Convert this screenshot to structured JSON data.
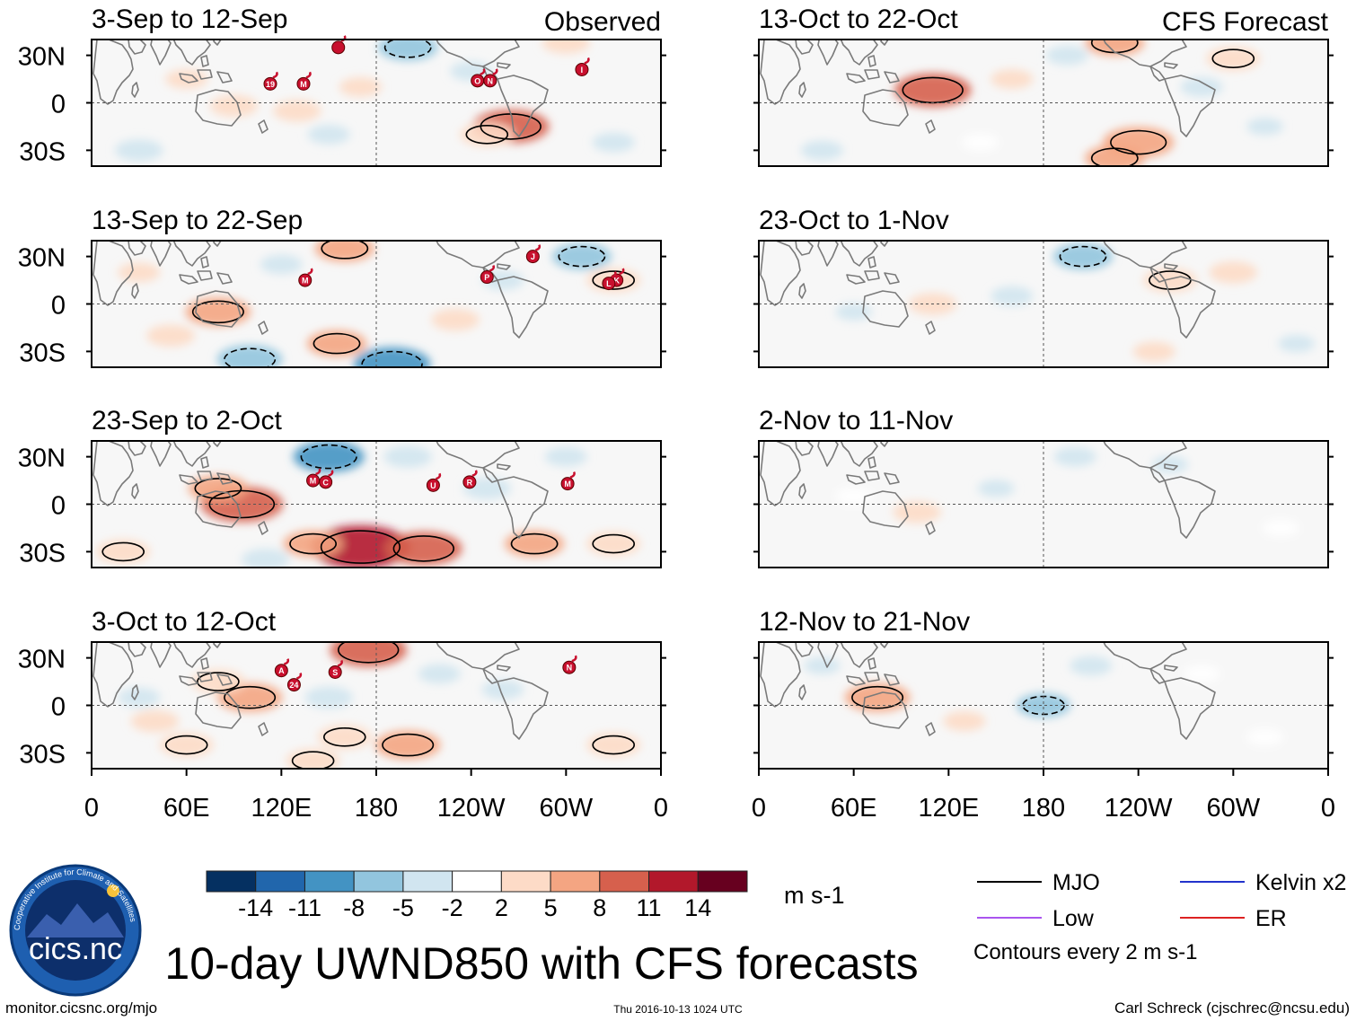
{
  "figure": {
    "title": "10-day UWND850 with CFS forecasts",
    "website": "monitor.cicsnc.org/mjo",
    "timestamp": "Thu 2016-10-13 1024 UTC",
    "author": "Carl Schreck (cjschrec@ncsu.edu)",
    "logo_label": "cics.nc",
    "logo_ring_text": "Cooperative Institute for Climate and Satellites"
  },
  "chart_data": {
    "type": "heatmap",
    "variable": "850-hPa zonal wind anomaly",
    "units": "m s-1",
    "column_headers": {
      "observed": "Observed",
      "forecast": "CFS Forecast"
    },
    "lat_ticks": [
      "30N",
      "0",
      "30S"
    ],
    "lat_values": [
      30,
      0,
      -30
    ],
    "lat_range": [
      -40,
      40
    ],
    "lon_ticks": [
      "0",
      "60E",
      "120E",
      "180",
      "120W",
      "60W",
      "0"
    ],
    "lon_values": [
      0,
      60,
      120,
      180,
      240,
      300,
      360
    ],
    "lon_range": [
      0,
      360
    ],
    "colorbar": {
      "labels": [
        "-14",
        "-11",
        "-8",
        "-5",
        "-2",
        "2",
        "5",
        "8",
        "11",
        "14"
      ],
      "colors": [
        "#053061",
        "#2166ac",
        "#4393c3",
        "#92c5de",
        "#d1e5f0",
        "#ffffff",
        "#fddbc7",
        "#f4a582",
        "#d6604d",
        "#b2182b",
        "#67001f"
      ]
    },
    "legend": [
      {
        "label": "MJO",
        "color": "#000000"
      },
      {
        "label": "Kelvin x2",
        "color": "#2233cc"
      },
      {
        "label": "Low",
        "color": "#aa55ee"
      },
      {
        "label": "ER",
        "color": "#dd2222"
      }
    ],
    "contour_note": "Contours every 2 m s-1",
    "panels": [
      {
        "title": "3-Sep to 12-Sep",
        "column": "observed",
        "storms": [
          {
            "letter": "",
            "lon": 156,
            "lat": 35
          },
          {
            "letter": "19",
            "lon": 113,
            "lat": 12
          },
          {
            "letter": "M",
            "lon": 134,
            "lat": 12
          },
          {
            "letter": "O",
            "lon": 244,
            "lat": 14
          },
          {
            "letter": "N",
            "lon": 252,
            "lat": 14
          },
          {
            "letter": "I",
            "lon": 310,
            "lat": 21
          }
        ],
        "anomalies": [
          {
            "lon": 90,
            "lat": -2,
            "v": 4
          },
          {
            "lon": 130,
            "lat": -5,
            "v": 4
          },
          {
            "lon": 170,
            "lat": 10,
            "v": 3
          },
          {
            "lon": 265,
            "lat": -15,
            "v": 9
          },
          {
            "lon": 250,
            "lat": -20,
            "v": 5
          },
          {
            "lon": 200,
            "lat": 35,
            "v": -6
          },
          {
            "lon": 240,
            "lat": 20,
            "v": -3
          },
          {
            "lon": 30,
            "lat": -30,
            "v": -4
          },
          {
            "lon": 150,
            "lat": -20,
            "v": -3
          },
          {
            "lon": 330,
            "lat": -25,
            "v": -3
          },
          {
            "lon": 60,
            "lat": 15,
            "v": 3
          },
          {
            "lon": 300,
            "lat": 38,
            "v": 4
          }
        ]
      },
      {
        "title": "13-Oct to 22-Oct",
        "column": "forecast",
        "storms": [],
        "anomalies": [
          {
            "lon": 110,
            "lat": 8,
            "v": 9
          },
          {
            "lon": 240,
            "lat": -25,
            "v": 8
          },
          {
            "lon": 225,
            "lat": -35,
            "v": 6
          },
          {
            "lon": 300,
            "lat": 28,
            "v": 5
          },
          {
            "lon": 225,
            "lat": 38,
            "v": 6
          },
          {
            "lon": 160,
            "lat": 15,
            "v": 3
          },
          {
            "lon": 280,
            "lat": 10,
            "v": -3
          },
          {
            "lon": 195,
            "lat": 30,
            "v": -3
          },
          {
            "lon": 40,
            "lat": -30,
            "v": -3
          },
          {
            "lon": 320,
            "lat": -15,
            "v": -2
          },
          {
            "lon": 140,
            "lat": -25,
            "v": 2
          }
        ]
      },
      {
        "title": "13-Sep to 22-Sep",
        "column": "observed",
        "storms": [
          {
            "letter": "J",
            "lon": 279,
            "lat": 30
          },
          {
            "letter": "M",
            "lon": 135,
            "lat": 15
          },
          {
            "letter": "P",
            "lon": 250,
            "lat": 17
          },
          {
            "letter": "K",
            "lon": 332,
            "lat": 15
          },
          {
            "letter": "L",
            "lon": 327,
            "lat": 13
          }
        ],
        "anomalies": [
          {
            "lon": 80,
            "lat": -5,
            "v": 7
          },
          {
            "lon": 50,
            "lat": -20,
            "v": 4
          },
          {
            "lon": 155,
            "lat": -25,
            "v": 6
          },
          {
            "lon": 160,
            "lat": 35,
            "v": 6
          },
          {
            "lon": 230,
            "lat": -10,
            "v": 4
          },
          {
            "lon": 330,
            "lat": 15,
            "v": 5
          },
          {
            "lon": 100,
            "lat": -35,
            "v": -7
          },
          {
            "lon": 190,
            "lat": -38,
            "v": -9
          },
          {
            "lon": 120,
            "lat": 25,
            "v": -3
          },
          {
            "lon": 310,
            "lat": 30,
            "v": -6
          },
          {
            "lon": 260,
            "lat": 15,
            "v": -3
          },
          {
            "lon": 30,
            "lat": 20,
            "v": 3
          }
        ]
      },
      {
        "title": "23-Oct to 1-Nov",
        "column": "forecast",
        "storms": [],
        "anomalies": [
          {
            "lon": 260,
            "lat": 15,
            "v": 5
          },
          {
            "lon": 300,
            "lat": 20,
            "v": 4
          },
          {
            "lon": 110,
            "lat": 0,
            "v": 4
          },
          {
            "lon": 205,
            "lat": 30,
            "v": -6
          },
          {
            "lon": 160,
            "lat": 5,
            "v": -3
          },
          {
            "lon": 60,
            "lat": -5,
            "v": -2
          },
          {
            "lon": 250,
            "lat": -30,
            "v": 3
          },
          {
            "lon": 340,
            "lat": -25,
            "v": -2
          }
        ]
      },
      {
        "title": "23-Sep to 2-Oct",
        "column": "observed",
        "storms": [
          {
            "letter": "M",
            "lon": 140,
            "lat": 15
          },
          {
            "letter": "C",
            "lon": 148,
            "lat": 14
          },
          {
            "letter": "U",
            "lon": 216,
            "lat": 12
          },
          {
            "letter": "R",
            "lon": 239,
            "lat": 14
          },
          {
            "letter": "M",
            "lon": 301,
            "lat": 13
          }
        ],
        "anomalies": [
          {
            "lon": 95,
            "lat": 0,
            "v": 10
          },
          {
            "lon": 80,
            "lat": 10,
            "v": 6
          },
          {
            "lon": 170,
            "lat": -27,
            "v": 13
          },
          {
            "lon": 210,
            "lat": -28,
            "v": 9
          },
          {
            "lon": 140,
            "lat": -25,
            "v": 6
          },
          {
            "lon": 280,
            "lat": -25,
            "v": 6
          },
          {
            "lon": 330,
            "lat": -25,
            "v": 5
          },
          {
            "lon": 20,
            "lat": -30,
            "v": 5
          },
          {
            "lon": 150,
            "lat": 30,
            "v": -8
          },
          {
            "lon": 200,
            "lat": 30,
            "v": -4
          },
          {
            "lon": 250,
            "lat": 10,
            "v": -4
          },
          {
            "lon": 110,
            "lat": -35,
            "v": -4
          },
          {
            "lon": 300,
            "lat": 30,
            "v": -3
          }
        ]
      },
      {
        "title": "2-Nov to 11-Nov",
        "column": "forecast",
        "storms": [],
        "anomalies": [
          {
            "lon": 100,
            "lat": -5,
            "v": 4
          },
          {
            "lon": 200,
            "lat": 30,
            "v": -3
          },
          {
            "lon": 150,
            "lat": 10,
            "v": -2
          },
          {
            "lon": 260,
            "lat": 25,
            "v": -2
          },
          {
            "lon": 330,
            "lat": -15,
            "v": 2
          },
          {
            "lon": 60,
            "lat": 5,
            "v": 2
          }
        ]
      },
      {
        "title": "3-Oct to 12-Oct",
        "column": "observed",
        "storms": [
          {
            "letter": "A",
            "lon": 120,
            "lat": 22
          },
          {
            "letter": "24",
            "lon": 128,
            "lat": 13
          },
          {
            "letter": "S",
            "lon": 154,
            "lat": 21
          },
          {
            "letter": "N",
            "lon": 302,
            "lat": 24
          }
        ],
        "anomalies": [
          {
            "lon": 100,
            "lat": 5,
            "v": 7
          },
          {
            "lon": 80,
            "lat": 15,
            "v": 5
          },
          {
            "lon": 175,
            "lat": 35,
            "v": 9
          },
          {
            "lon": 200,
            "lat": -25,
            "v": 7
          },
          {
            "lon": 160,
            "lat": -20,
            "v": 5
          },
          {
            "lon": 140,
            "lat": -35,
            "v": 5
          },
          {
            "lon": 60,
            "lat": -25,
            "v": 5
          },
          {
            "lon": 330,
            "lat": -25,
            "v": 5
          },
          {
            "lon": 260,
            "lat": 10,
            "v": -3
          },
          {
            "lon": 150,
            "lat": 5,
            "v": -4
          },
          {
            "lon": 220,
            "lat": 20,
            "v": -3
          },
          {
            "lon": 30,
            "lat": 5,
            "v": -3
          },
          {
            "lon": 40,
            "lat": -10,
            "v": 4
          }
        ]
      },
      {
        "title": "12-Nov to 21-Nov",
        "column": "forecast",
        "storms": [],
        "anomalies": [
          {
            "lon": 75,
            "lat": 5,
            "v": 7
          },
          {
            "lon": 180,
            "lat": 0,
            "v": -5
          },
          {
            "lon": 210,
            "lat": 25,
            "v": -3
          },
          {
            "lon": 130,
            "lat": -10,
            "v": 3
          },
          {
            "lon": 280,
            "lat": 20,
            "v": 2
          },
          {
            "lon": 40,
            "lat": 25,
            "v": -2
          },
          {
            "lon": 320,
            "lat": -20,
            "v": 2
          }
        ]
      }
    ]
  }
}
